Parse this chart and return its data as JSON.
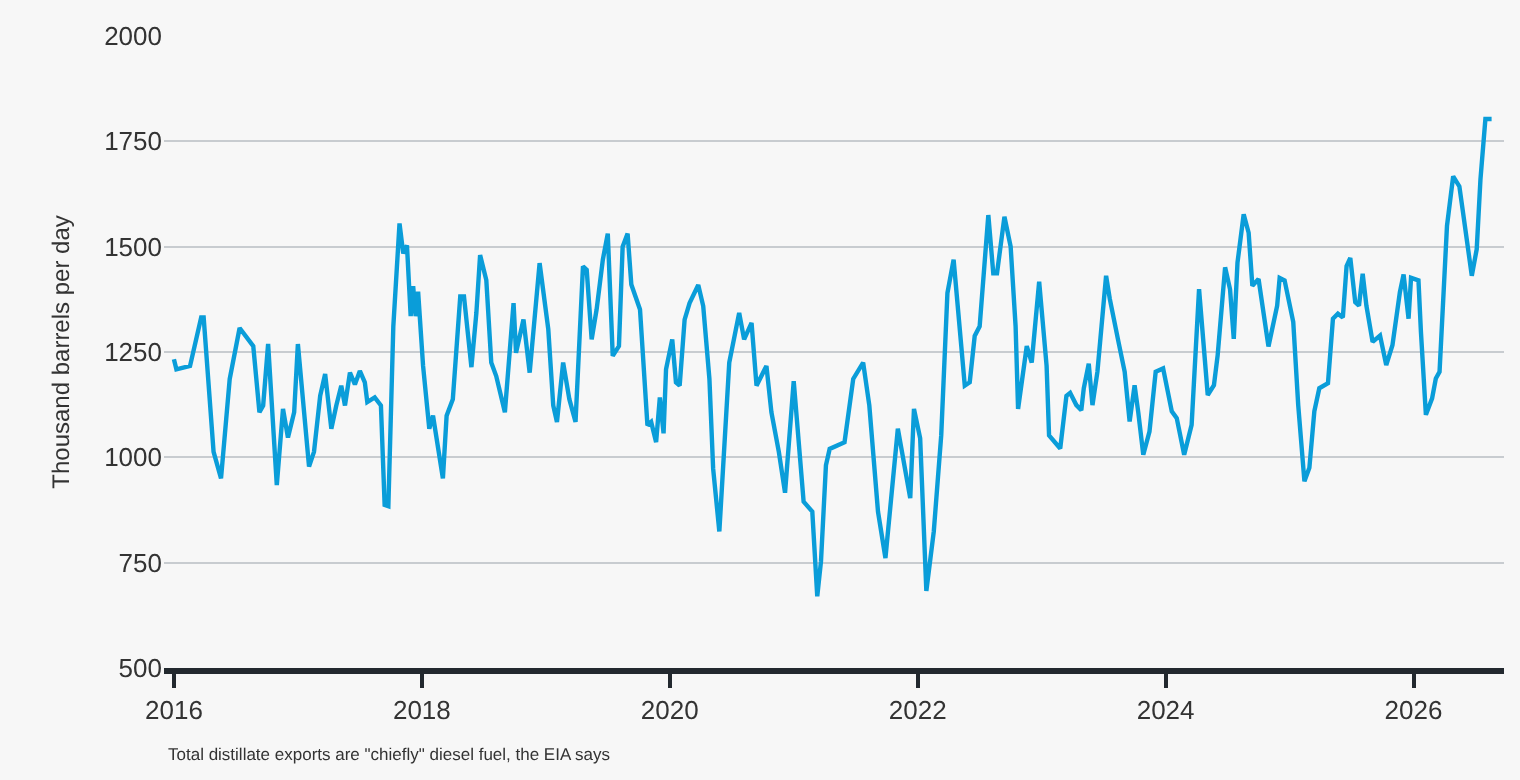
{
  "chart_data": {
    "type": "line",
    "ylabel": "Thousand barrels per day",
    "annotations": [
      "Total distillate exports are \"chiefly\" diesel fuel, the EIA says"
    ],
    "xlim": [
      2015.92,
      2026.73
    ],
    "xticks": [
      2016,
      2018,
      2020,
      2022,
      2024,
      2026
    ],
    "ylim": [
      500,
      2000
    ],
    "yticks": [
      500,
      750,
      1000,
      1250,
      1500,
      1750,
      2000
    ],
    "grid": "y",
    "legend": false,
    "marker": "none",
    "line_style": "solid",
    "series": [
      {
        "color": "#0a9dd9",
        "x": [
          2016.0,
          2016.02,
          2016.13,
          2016.22,
          2016.24,
          2016.32,
          2016.38,
          2016.45,
          2016.53,
          2016.64,
          2016.69,
          2016.72,
          2016.76,
          2016.83,
          2016.88,
          2016.92,
          2016.97,
          2017.0,
          2017.09,
          2017.13,
          2017.18,
          2017.22,
          2017.27,
          2017.31,
          2017.35,
          2017.38,
          2017.42,
          2017.46,
          2017.5,
          2017.54,
          2017.56,
          2017.62,
          2017.67,
          2017.7,
          2017.73,
          2017.77,
          2017.82,
          2017.85,
          2017.88,
          2017.91,
          2017.93,
          2017.95,
          2017.97,
          2018.01,
          2018.06,
          2018.09,
          2018.17,
          2018.2,
          2018.25,
          2018.31,
          2018.34,
          2018.4,
          2018.44,
          2018.47,
          2018.52,
          2018.56,
          2018.6,
          2018.67,
          2018.74,
          2018.76,
          2018.82,
          2018.87,
          2018.95,
          2019.02,
          2019.06,
          2019.09,
          2019.14,
          2019.19,
          2019.24,
          2019.3,
          2019.33,
          2019.37,
          2019.41,
          2019.46,
          2019.5,
          2019.54,
          2019.59,
          2019.62,
          2019.66,
          2019.69,
          2019.76,
          2019.82,
          2019.85,
          2019.89,
          2019.92,
          2019.95,
          2019.97,
          2020.02,
          2020.05,
          2020.08,
          2020.12,
          2020.16,
          2020.23,
          2020.27,
          2020.32,
          2020.35,
          2020.4,
          2020.48,
          2020.56,
          2020.6,
          2020.66,
          2020.7,
          2020.78,
          2020.82,
          2020.88,
          2020.93,
          2021.0,
          2021.08,
          2021.15,
          2021.19,
          2021.22,
          2021.26,
          2021.29,
          2021.41,
          2021.48,
          2021.56,
          2021.61,
          2021.68,
          2021.74,
          2021.84,
          2021.94,
          2021.97,
          2022.02,
          2022.07,
          2022.13,
          2022.19,
          2022.24,
          2022.29,
          2022.38,
          2022.42,
          2022.46,
          2022.5,
          2022.57,
          2022.61,
          2022.64,
          2022.7,
          2022.75,
          2022.79,
          2022.81,
          2022.88,
          2022.92,
          2022.98,
          2023.04,
          2023.06,
          2023.15,
          2023.2,
          2023.23,
          2023.28,
          2023.32,
          2023.34,
          2023.38,
          2023.41,
          2023.45,
          2023.52,
          2023.55,
          2023.62,
          2023.67,
          2023.71,
          2023.75,
          2023.78,
          2023.82,
          2023.87,
          2023.92,
          2023.98,
          2024.05,
          2024.09,
          2024.15,
          2024.21,
          2024.27,
          2024.34,
          2024.39,
          2024.42,
          2024.48,
          2024.52,
          2024.55,
          2024.58,
          2024.63,
          2024.67,
          2024.7,
          2024.75,
          2024.83,
          2024.9,
          2024.92,
          2024.96,
          2025.03,
          2025.07,
          2025.12,
          2025.16,
          2025.2,
          2025.24,
          2025.31,
          2025.35,
          2025.39,
          2025.43,
          2025.46,
          2025.49,
          2025.53,
          2025.56,
          2025.59,
          2025.62,
          2025.67,
          2025.73,
          2025.78,
          2025.83,
          2025.89,
          2025.92,
          2025.96,
          2025.98,
          2026.04,
          2026.06,
          2026.1,
          2026.15,
          2026.18,
          2026.21,
          2026.27,
          2026.32,
          2026.37,
          2026.4,
          2026.47,
          2026.51,
          2026.54,
          2026.58,
          2026.63
        ],
        "values": [
          1233,
          1209,
          1217,
          1332,
          1332,
          1013,
          950,
          1186,
          1307,
          1264,
          1107,
          1123,
          1269,
          934,
          1115,
          1047,
          1107,
          1269,
          978,
          1013,
          1146,
          1198,
          1068,
          1123,
          1170,
          1123,
          1201,
          1173,
          1205,
          1178,
          1131,
          1142,
          1123,
          887,
          884,
          1311,
          1555,
          1484,
          1503,
          1335,
          1406,
          1335,
          1393,
          1217,
          1068,
          1099,
          950,
          1099,
          1138,
          1382,
          1382,
          1214,
          1343,
          1480,
          1421,
          1225,
          1193,
          1107,
          1366,
          1248,
          1327,
          1201,
          1461,
          1304,
          1123,
          1084,
          1225,
          1138,
          1084,
          1453,
          1445,
          1280,
          1351,
          1469,
          1531,
          1241,
          1264,
          1500,
          1531,
          1410,
          1351,
          1076,
          1084,
          1036,
          1142,
          1057,
          1209,
          1280,
          1178,
          1170,
          1327,
          1366,
          1409,
          1359,
          1186,
          973,
          824,
          1225,
          1343,
          1280,
          1319,
          1170,
          1217,
          1107,
          1013,
          916,
          1181,
          895,
          871,
          670,
          753,
          981,
          1020,
          1036,
          1186,
          1225,
          1123,
          871,
          761,
          1068,
          903,
          1115,
          1045,
          683,
          824,
          1052,
          1390,
          1469,
          1170,
          1178,
          1288,
          1311,
          1575,
          1437,
          1437,
          1571,
          1500,
          1311,
          1115,
          1264,
          1225,
          1417,
          1217,
          1052,
          1021,
          1146,
          1153,
          1124,
          1112,
          1164,
          1222,
          1124,
          1203,
          1431,
          1376,
          1274,
          1203,
          1085,
          1171,
          1106,
          1006,
          1061,
          1203,
          1211,
          1109,
          1093,
          1006,
          1077,
          1399,
          1148,
          1171,
          1242,
          1451,
          1399,
          1281,
          1462,
          1577,
          1533,
          1407,
          1423,
          1263,
          1360,
          1426,
          1420,
          1321,
          1124,
          943,
          975,
          1109,
          1164,
          1176,
          1329,
          1341,
          1332,
          1454,
          1473,
          1368,
          1360,
          1436,
          1360,
          1274,
          1289,
          1219,
          1266,
          1392,
          1434,
          1329,
          1426,
          1420,
          1297,
          1101,
          1140,
          1187,
          1203,
          1549,
          1667,
          1643,
          1580,
          1431,
          1494,
          1659,
          1803,
          1803
        ]
      }
    ]
  }
}
